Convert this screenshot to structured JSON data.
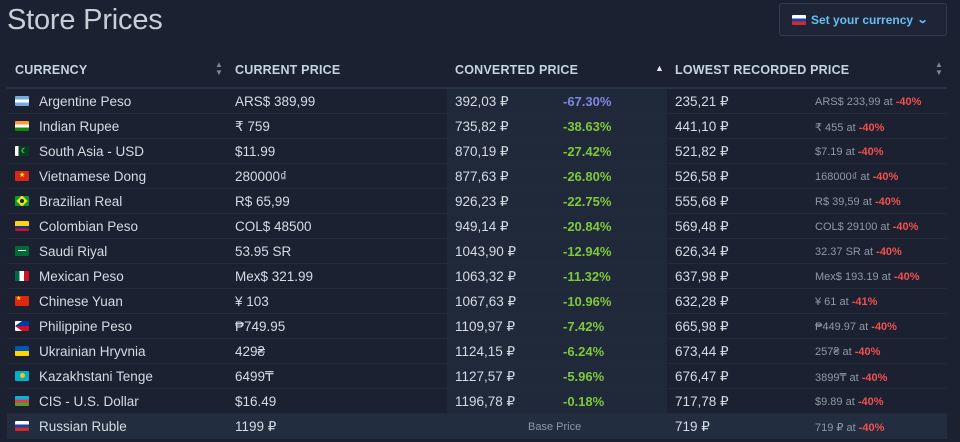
{
  "page": {
    "title": "Store Prices"
  },
  "currency_button": {
    "label": "Set your currency",
    "flag": "RU"
  },
  "columns": {
    "currency": "CURRENCY",
    "current": "CURRENT PRICE",
    "converted": "CONVERTED PRICE",
    "lowest": "LOWEST RECORDED PRICE"
  },
  "rows": [
    {
      "flag": "AR",
      "name": "Argentine Peso",
      "current": "ARS$ 389,99",
      "converted": "392,03 ₽",
      "pct": "-67.30%",
      "pct_style": "blue",
      "lowest": "235,21 ₽",
      "lowest_orig": "ARS$ 233,99 at ",
      "lowest_pct": "-40%"
    },
    {
      "flag": "IN",
      "name": "Indian Rupee",
      "current": "₹ 759",
      "converted": "735,82 ₽",
      "pct": "-38.63%",
      "pct_style": "green",
      "lowest": "441,10 ₽",
      "lowest_orig": "₹ 455 at ",
      "lowest_pct": "-40%"
    },
    {
      "flag": "PK",
      "name": "South Asia - USD",
      "current": "$11.99",
      "converted": "870,19 ₽",
      "pct": "-27.42%",
      "pct_style": "green",
      "lowest": "521,82 ₽",
      "lowest_orig": "$7.19 at ",
      "lowest_pct": "-40%"
    },
    {
      "flag": "VN",
      "name": "Vietnamese Dong",
      "current": "280000₫",
      "converted": "877,63 ₽",
      "pct": "-26.80%",
      "pct_style": "green",
      "lowest": "526,58 ₽",
      "lowest_orig": "168000₫ at ",
      "lowest_pct": "-40%"
    },
    {
      "flag": "BR",
      "name": "Brazilian Real",
      "current": "R$ 65,99",
      "converted": "926,23 ₽",
      "pct": "-22.75%",
      "pct_style": "green",
      "lowest": "555,68 ₽",
      "lowest_orig": "R$ 39,59 at ",
      "lowest_pct": "-40%"
    },
    {
      "flag": "CO",
      "name": "Colombian Peso",
      "current": "COL$ 48500",
      "converted": "949,14 ₽",
      "pct": "-20.84%",
      "pct_style": "green",
      "lowest": "569,48 ₽",
      "lowest_orig": "COL$ 29100 at ",
      "lowest_pct": "-40%"
    },
    {
      "flag": "SA",
      "name": "Saudi Riyal",
      "current": "53.95 SR",
      "converted": "1043,90 ₽",
      "pct": "-12.94%",
      "pct_style": "green",
      "lowest": "626,34 ₽",
      "lowest_orig": "32.37 SR at ",
      "lowest_pct": "-40%"
    },
    {
      "flag": "MX",
      "name": "Mexican Peso",
      "current": "Mex$ 321.99",
      "converted": "1063,32 ₽",
      "pct": "-11.32%",
      "pct_style": "green",
      "lowest": "637,98 ₽",
      "lowest_orig": "Mex$ 193.19 at ",
      "lowest_pct": "-40%"
    },
    {
      "flag": "CN",
      "name": "Chinese Yuan",
      "current": "¥ 103",
      "converted": "1067,63 ₽",
      "pct": "-10.96%",
      "pct_style": "green",
      "lowest": "632,28 ₽",
      "lowest_orig": "¥ 61 at ",
      "lowest_pct": "-41%"
    },
    {
      "flag": "PH",
      "name": "Philippine Peso",
      "current": "₱749.95",
      "converted": "1109,97 ₽",
      "pct": "-7.42%",
      "pct_style": "green",
      "lowest": "665,98 ₽",
      "lowest_orig": "₱449.97 at ",
      "lowest_pct": "-40%"
    },
    {
      "flag": "UA",
      "name": "Ukrainian Hryvnia",
      "current": "429₴",
      "converted": "1124,15 ₽",
      "pct": "-6.24%",
      "pct_style": "green",
      "lowest": "673,44 ₽",
      "lowest_orig": "257₴ at ",
      "lowest_pct": "-40%"
    },
    {
      "flag": "KZ",
      "name": "Kazakhstani Tenge",
      "current": "6499₸",
      "converted": "1127,57 ₽",
      "pct": "-5.96%",
      "pct_style": "green",
      "lowest": "676,47 ₽",
      "lowest_orig": "3899₸ at ",
      "lowest_pct": "-40%"
    },
    {
      "flag": "AZ",
      "name": "CIS - U.S. Dollar",
      "current": "$16.49",
      "converted": "1196,78 ₽",
      "pct": "-0.18%",
      "pct_style": "green",
      "lowest": "717,78 ₽",
      "lowest_orig": "$9.89 at ",
      "lowest_pct": "-40%"
    },
    {
      "flag": "RU",
      "name": "Russian Ruble",
      "current": "1199 ₽",
      "converted": "",
      "pct": "",
      "pct_style": "none",
      "base_label": "Base Price",
      "lowest": "719 ₽",
      "lowest_orig": "719 ₽ at ",
      "lowest_pct": "-40%"
    }
  ]
}
